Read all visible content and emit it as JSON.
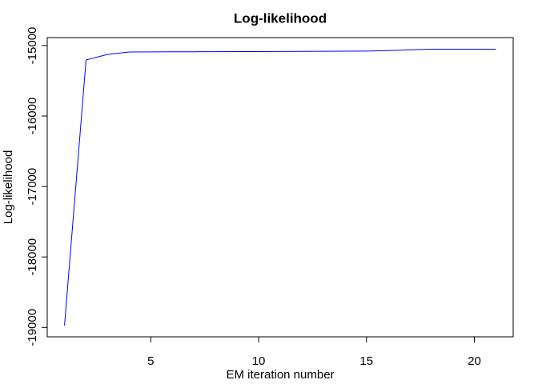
{
  "chart_data": {
    "type": "line",
    "title": "Log-likelihood",
    "x_label": "EM iteration number",
    "y_label": "Log-likelihood",
    "x": [
      1,
      2,
      3,
      4,
      5,
      6,
      7,
      8,
      9,
      10,
      11,
      12,
      13,
      14,
      15,
      16,
      17,
      18,
      19,
      20,
      21
    ],
    "values": [
      -18975,
      -15205,
      -15125,
      -15092,
      -15090,
      -15089,
      -15088,
      -15087,
      -15086,
      -15085,
      -15084,
      -15083,
      -15082,
      -15080,
      -15078,
      -15072,
      -15060,
      -15052,
      -15051,
      -15051,
      -15051
    ],
    "color": "#0000ff",
    "xlim": [
      0.2,
      21.8
    ],
    "xticks": [
      5,
      10,
      15,
      20
    ],
    "ylim": [
      -19133,
      -14887
    ],
    "yticks": [
      -19000,
      -18000,
      -17000,
      -16000,
      -15000
    ]
  }
}
